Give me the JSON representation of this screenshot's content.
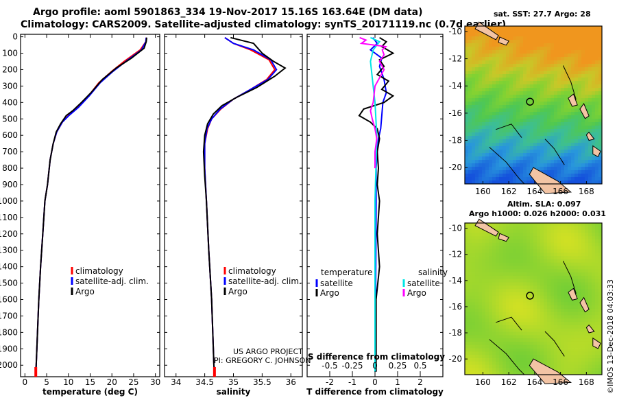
{
  "header": {
    "line1": "Argo profile: aoml 5901863_334 19-Nov-2017 15.16S 163.64E (DM data)",
    "line2": "Climatology: CARS2009. Satellite-adjusted climatology: synTS_20171119.nc (0.7d earlier)"
  },
  "credits": {
    "line1": "US ARGO PROJECT",
    "line2": "PI: GREGORY C. JOHNSON"
  },
  "stamp": "©IMOS 13-Dec-2018 04:03:33",
  "colors": {
    "climatology": "#ff0000",
    "satellite": "#0000ff",
    "argo": "#000000",
    "sal_satellite": "#00e5e5",
    "sal_argo": "#ff00ff"
  },
  "depth_ticks": [
    "0",
    "100",
    "200",
    "300",
    "400",
    "500",
    "600",
    "700",
    "800",
    "900",
    "1000",
    "1100",
    "1200",
    "1300",
    "1400",
    "1500",
    "1600",
    "1700",
    "1800",
    "1900",
    "2000"
  ],
  "chart_data": [
    {
      "type": "line",
      "xlabel": "temperature (deg C)",
      "xlim": [
        -1,
        31
      ],
      "xticks": [
        0,
        5,
        10,
        15,
        20,
        25,
        30
      ],
      "ylim": [
        2070,
        -15
      ],
      "legend": {
        "placement": "lower-middle",
        "entries": [
          "climatology",
          "satellite-adj. clim.",
          "Argo"
        ]
      },
      "series": [
        {
          "name": "climatology",
          "color": "#ff0000",
          "points": [
            [
              27.9,
              5
            ],
            [
              27.8,
              30
            ],
            [
              26.5,
              80
            ],
            [
              22.8,
              150
            ],
            [
              20.0,
              210
            ],
            [
              17.0,
              280
            ],
            [
              14.6,
              360
            ],
            [
              12.2,
              430
            ],
            [
              10.0,
              480
            ],
            [
              8.6,
              520
            ],
            [
              7.3,
              580
            ],
            [
              6.5,
              650
            ],
            [
              5.8,
              750
            ],
            [
              5.2,
              900
            ],
            [
              4.6,
              1000
            ],
            [
              4.1,
              1200
            ],
            [
              3.6,
              1400
            ],
            [
              3.2,
              1600
            ],
            [
              2.9,
              1800
            ],
            [
              2.6,
              2000
            ],
            [
              2.5,
              2040
            ]
          ]
        },
        {
          "name": "satellite-adj. clim.",
          "color": "#0000ff",
          "points": [
            [
              27.9,
              5
            ],
            [
              27.8,
              30
            ],
            [
              26.8,
              80
            ],
            [
              23.2,
              150
            ],
            [
              20.3,
              210
            ],
            [
              17.3,
              280
            ],
            [
              14.8,
              360
            ],
            [
              12.3,
              430
            ],
            [
              10.1,
              480
            ],
            [
              8.6,
              520
            ],
            [
              7.3,
              580
            ],
            [
              6.5,
              650
            ],
            [
              5.8,
              750
            ],
            [
              5.2,
              900
            ],
            [
              4.6,
              1000
            ],
            [
              4.1,
              1200
            ],
            [
              3.6,
              1400
            ],
            [
              3.2,
              1600
            ],
            [
              2.9,
              1800
            ],
            [
              2.6,
              2000
            ],
            [
              2.5,
              2040
            ]
          ]
        },
        {
          "name": "Argo",
          "color": "#000000",
          "points": [
            [
              28.0,
              5
            ],
            [
              27.9,
              30
            ],
            [
              27.4,
              70
            ],
            [
              24.5,
              130
            ],
            [
              21.0,
              190
            ],
            [
              17.8,
              260
            ],
            [
              15.2,
              340
            ],
            [
              13.0,
              400
            ],
            [
              11.0,
              450
            ],
            [
              9.5,
              480
            ],
            [
              8.2,
              530
            ],
            [
              7.2,
              580
            ],
            [
              6.5,
              650
            ],
            [
              5.8,
              750
            ],
            [
              5.2,
              900
            ],
            [
              4.6,
              1000
            ],
            [
              4.1,
              1200
            ],
            [
              3.6,
              1400
            ],
            [
              3.2,
              1600
            ],
            [
              2.9,
              1800
            ],
            [
              2.6,
              2000
            ],
            [
              2.5,
              2040
            ]
          ]
        }
      ]
    },
    {
      "type": "line",
      "xlabel": "salinity",
      "xlim": [
        33.8,
        36.2
      ],
      "xticks": [
        34,
        34.5,
        35,
        35.5,
        36
      ],
      "xtick_labels": [
        "34",
        "34.5",
        "35",
        "35.5",
        "36"
      ],
      "ylim": [
        2070,
        -15
      ],
      "legend": {
        "placement": "lower-middle",
        "entries": [
          "climatology",
          "satellite-adj. clim.",
          "Argo"
        ]
      },
      "series": [
        {
          "name": "climatology",
          "color": "#ff0000",
          "points": [
            [
              34.85,
              5
            ],
            [
              35.0,
              40
            ],
            [
              35.3,
              80
            ],
            [
              35.62,
              140
            ],
            [
              35.72,
              200
            ],
            [
              35.58,
              260
            ],
            [
              35.3,
              320
            ],
            [
              35.0,
              380
            ],
            [
              34.78,
              440
            ],
            [
              34.62,
              500
            ],
            [
              34.55,
              560
            ],
            [
              34.5,
              650
            ],
            [
              34.5,
              800
            ],
            [
              34.53,
              1000
            ],
            [
              34.57,
              1300
            ],
            [
              34.62,
              1600
            ],
            [
              34.66,
              2000
            ],
            [
              34.67,
              2040
            ]
          ]
        },
        {
          "name": "satellite-adj. clim.",
          "color": "#0000ff",
          "points": [
            [
              34.85,
              5
            ],
            [
              35.0,
              40
            ],
            [
              35.35,
              80
            ],
            [
              35.65,
              140
            ],
            [
              35.75,
              200
            ],
            [
              35.6,
              260
            ],
            [
              35.3,
              320
            ],
            [
              35.0,
              380
            ],
            [
              34.77,
              440
            ],
            [
              34.62,
              500
            ],
            [
              34.54,
              560
            ],
            [
              34.5,
              650
            ],
            [
              34.5,
              800
            ],
            [
              34.53,
              1000
            ],
            [
              34.57,
              1300
            ],
            [
              34.62,
              1600
            ],
            [
              34.66,
              2000
            ],
            [
              34.67,
              2040
            ]
          ]
        },
        {
          "name": "Argo",
          "color": "#000000",
          "points": [
            [
              34.95,
              5
            ],
            [
              35.35,
              40
            ],
            [
              35.5,
              100
            ],
            [
              35.7,
              150
            ],
            [
              35.9,
              190
            ],
            [
              35.72,
              240
            ],
            [
              35.4,
              310
            ],
            [
              35.05,
              370
            ],
            [
              34.8,
              420
            ],
            [
              34.65,
              470
            ],
            [
              34.55,
              530
            ],
            [
              34.5,
              600
            ],
            [
              34.48,
              700
            ],
            [
              34.5,
              850
            ],
            [
              34.53,
              1000
            ],
            [
              34.57,
              1300
            ],
            [
              34.62,
              1600
            ],
            [
              34.66,
              2000
            ],
            [
              34.67,
              2040
            ]
          ]
        }
      ]
    },
    {
      "type": "line",
      "xlabel": "T difference from climatology",
      "xlabel2": "S difference from climatology",
      "xlim": [
        -3,
        3
      ],
      "xticks": [
        -2,
        -1,
        0,
        1,
        2
      ],
      "xlim2": [
        -0.75,
        0.75
      ],
      "xticks2": [
        -0.5,
        -0.25,
        0,
        0.25,
        0.5
      ],
      "xtick2_labels": [
        "-0.5",
        "-0.25",
        "0",
        "0.25",
        "0.5"
      ],
      "ylim": [
        2070,
        -15
      ],
      "legend": {
        "placement": "lower",
        "left_heading": "temperature",
        "right_heading": "salinity",
        "entries": [
          "satellite",
          "Argo",
          "satellite",
          "Argo"
        ]
      },
      "series": [
        {
          "name": "satellite",
          "group": "temperature",
          "axis": "T",
          "color": "#0000ff",
          "points": [
            [
              -0.1,
              5
            ],
            [
              0.1,
              40
            ],
            [
              -0.2,
              80
            ],
            [
              0.3,
              130
            ],
            [
              0.2,
              180
            ],
            [
              0.4,
              260
            ],
            [
              0.5,
              340
            ],
            [
              0.35,
              400
            ],
            [
              0.3,
              480
            ],
            [
              0.25,
              560
            ],
            [
              0.15,
              620
            ],
            [
              0.1,
              700
            ],
            [
              0.05,
              800
            ],
            [
              0.05,
              1000
            ],
            [
              0.03,
              1500
            ],
            [
              0.02,
              2040
            ]
          ]
        },
        {
          "name": "Argo",
          "group": "temperature",
          "axis": "T",
          "color": "#000000",
          "points": [
            [
              0.2,
              5
            ],
            [
              0.5,
              30
            ],
            [
              0.3,
              60
            ],
            [
              0.8,
              100
            ],
            [
              0.2,
              140
            ],
            [
              0.4,
              180
            ],
            [
              0.1,
              230
            ],
            [
              0.6,
              270
            ],
            [
              0.3,
              320
            ],
            [
              0.8,
              360
            ],
            [
              0.4,
              400
            ],
            [
              -0.5,
              440
            ],
            [
              -0.7,
              480
            ],
            [
              -0.2,
              520
            ],
            [
              0.1,
              560
            ],
            [
              0.2,
              620
            ],
            [
              0.1,
              700
            ],
            [
              0.15,
              800
            ],
            [
              0.1,
              900
            ],
            [
              0.2,
              1000
            ],
            [
              0.1,
              1200
            ],
            [
              0.2,
              1400
            ],
            [
              0.05,
              1600
            ],
            [
              0.05,
              2040
            ]
          ]
        },
        {
          "name": "satellite",
          "group": "salinity",
          "axis": "S",
          "color": "#00e5e5",
          "points": [
            [
              -0.05,
              5
            ],
            [
              0.05,
              30
            ],
            [
              -0.02,
              80
            ],
            [
              -0.05,
              150
            ],
            [
              -0.03,
              250
            ],
            [
              0.0,
              400
            ],
            [
              0.02,
              600
            ],
            [
              0.01,
              800
            ],
            [
              0.0,
              1000
            ],
            [
              0.0,
              1500
            ],
            [
              0.0,
              2040
            ]
          ]
        },
        {
          "name": "Argo",
          "group": "salinity",
          "axis": "S",
          "color": "#ff00ff",
          "points": [
            [
              -0.17,
              5
            ],
            [
              -0.1,
              20
            ],
            [
              -0.15,
              40
            ],
            [
              0.12,
              60
            ],
            [
              0.08,
              80
            ],
            [
              0.1,
              110
            ],
            [
              0.05,
              150
            ],
            [
              0.1,
              200
            ],
            [
              0.0,
              300
            ],
            [
              -0.02,
              400
            ],
            [
              -0.05,
              450
            ],
            [
              -0.03,
              500
            ],
            [
              0.0,
              560
            ],
            [
              0.02,
              620
            ],
            [
              0.0,
              700
            ],
            [
              0.0,
              800
            ]
          ]
        }
      ]
    },
    {
      "type": "heatmap",
      "title": "sat. SST: 27.7 Argo: 28",
      "xlim": [
        158.6,
        169.2
      ],
      "ylim": [
        -21.2,
        -9.6
      ],
      "xticks": [
        160,
        162,
        164,
        166,
        168
      ],
      "yticks": [
        -10,
        -12,
        -14,
        -16,
        -18,
        -20
      ],
      "argo_position": {
        "lon": 163.64,
        "lat": -15.16
      }
    },
    {
      "type": "heatmap",
      "title": "Altim. SLA: 0.097",
      "subtitle": "Argo h1000: 0.026 h2000: 0.031",
      "xlim": [
        158.6,
        169.2
      ],
      "ylim": [
        -21.2,
        -9.6
      ],
      "xticks": [
        160,
        162,
        164,
        166,
        168
      ],
      "yticks": [
        -10,
        -12,
        -14,
        -16,
        -18,
        -20
      ],
      "argo_position": {
        "lon": 163.64,
        "lat": -15.16
      }
    }
  ]
}
